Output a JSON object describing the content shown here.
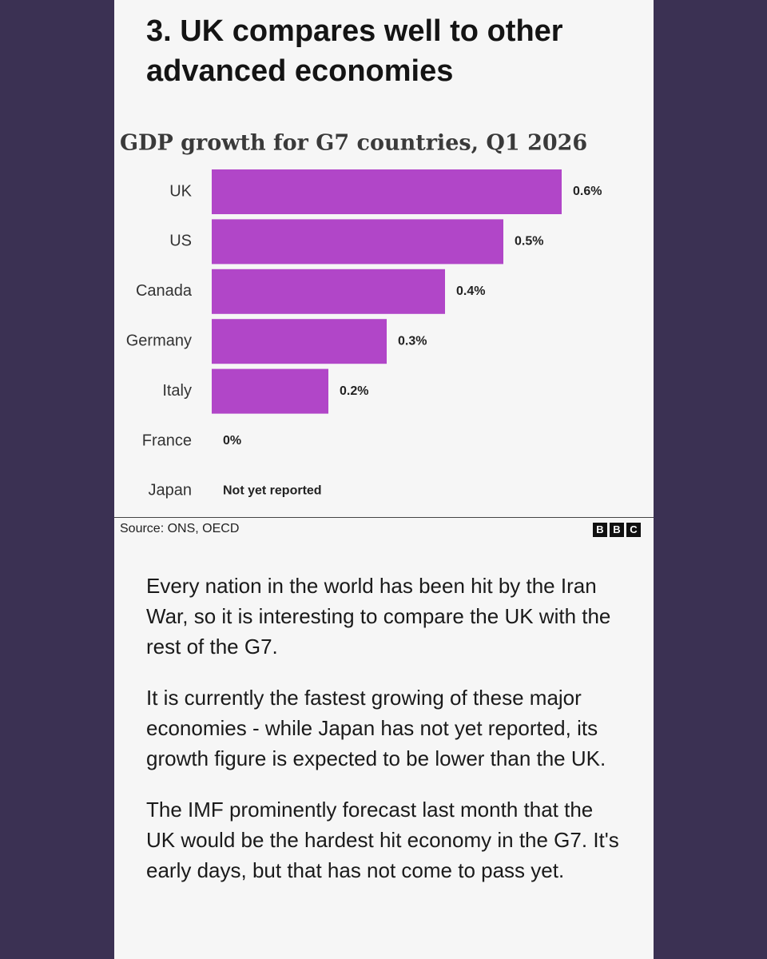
{
  "heading": "3. UK compares well to other advanced economies",
  "chart_data": {
    "type": "bar",
    "orientation": "horizontal",
    "title": "GDP growth for G7 countries, Q1 2026",
    "categories": [
      "UK",
      "US",
      "Canada",
      "Germany",
      "Italy",
      "France",
      "Japan"
    ],
    "values": [
      0.6,
      0.5,
      0.4,
      0.3,
      0.2,
      0,
      null
    ],
    "value_labels": [
      "0.6%",
      "0.5%",
      "0.4%",
      "0.3%",
      "0.2%",
      "0%",
      "Not yet reported"
    ],
    "color": "#b146c8"
  },
  "source": "Source: ONS, OECD",
  "logo": [
    "B",
    "B",
    "C"
  ],
  "paragraphs": [
    "Every nation in the world has been hit by the Iran War, so it is interesting to compare the UK with the rest of the G7.",
    "It is currently the fastest growing of these major economies - while Japan has not yet reported, its growth figure is expected to be lower than the UK.",
    "The IMF prominently forecast last month that the UK would be the hardest hit economy in the G7. It's early days, but that has not come to pass yet."
  ]
}
